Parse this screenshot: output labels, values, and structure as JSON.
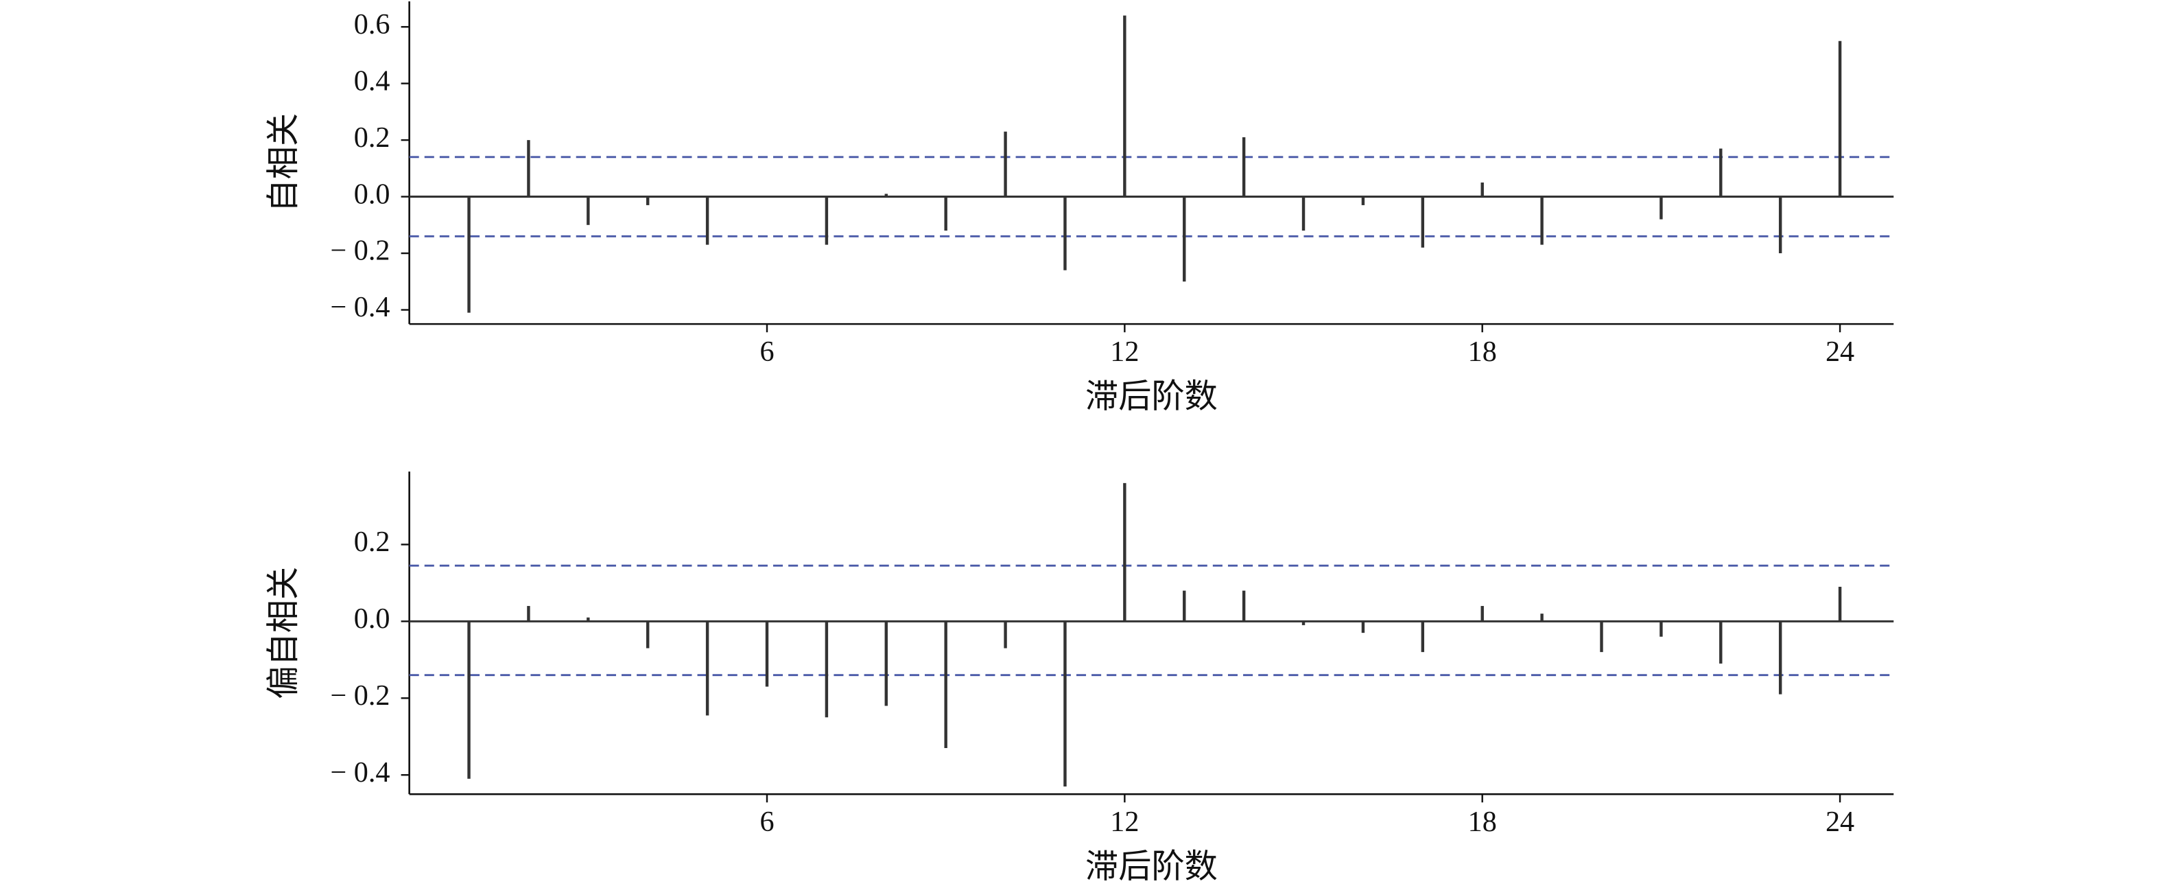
{
  "chart_data": [
    {
      "type": "bar",
      "y_label": "自相关",
      "x_label": "滞后阶数",
      "categories": [
        1,
        2,
        3,
        4,
        5,
        6,
        7,
        8,
        9,
        10,
        11,
        12,
        13,
        14,
        15,
        16,
        17,
        18,
        19,
        20,
        21,
        22,
        23,
        24
      ],
      "values": [
        -0.41,
        0.2,
        -0.1,
        -0.03,
        -0.17,
        0.0,
        -0.17,
        0.01,
        -0.12,
        0.23,
        -0.26,
        0.64,
        -0.3,
        0.21,
        -0.12,
        -0.03,
        -0.18,
        0.05,
        -0.17,
        0.0,
        -0.08,
        0.17,
        -0.2,
        0.55
      ],
      "color": "#333333",
      "bands": [
        0.14,
        -0.14
      ],
      "band_color": "#4a5aa8",
      "xlim": [
        0,
        24.9
      ],
      "xticks": [
        6,
        12,
        18,
        24
      ],
      "ylim": [
        -0.45,
        0.69
      ],
      "yticks": [
        {
          "value": -0.4,
          "label": "− 0.4"
        },
        {
          "value": -0.2,
          "label": "− 0.2"
        },
        {
          "value": 0,
          "label": "0.0"
        },
        0.2,
        0.4,
        0.6
      ]
    },
    {
      "type": "bar",
      "y_label": "偏自相关",
      "x_label": "滞后阶数",
      "categories": [
        1,
        2,
        3,
        4,
        5,
        6,
        7,
        8,
        9,
        10,
        11,
        12,
        13,
        14,
        15,
        16,
        17,
        18,
        19,
        20,
        21,
        22,
        23,
        24
      ],
      "values": [
        -0.41,
        0.04,
        0.01,
        -0.07,
        -0.245,
        -0.17,
        -0.25,
        -0.22,
        -0.33,
        -0.07,
        -0.43,
        0.36,
        0.08,
        0.08,
        -0.01,
        -0.03,
        -0.08,
        0.04,
        0.02,
        -0.08,
        -0.04,
        -0.11,
        -0.19,
        0.09
      ],
      "color": "#333333",
      "bands": [
        0.145,
        -0.14
      ],
      "band_color": "#4a5aa8",
      "xlim": [
        0,
        24.9
      ],
      "xticks": [
        6,
        12,
        18,
        24
      ],
      "ylim": [
        -0.45,
        0.39
      ],
      "yticks": [
        {
          "value": -0.4,
          "label": "− 0.4"
        },
        {
          "value": -0.2,
          "label": "− 0.2"
        },
        {
          "value": 0,
          "label": "0.0"
        },
        0.2
      ]
    }
  ]
}
